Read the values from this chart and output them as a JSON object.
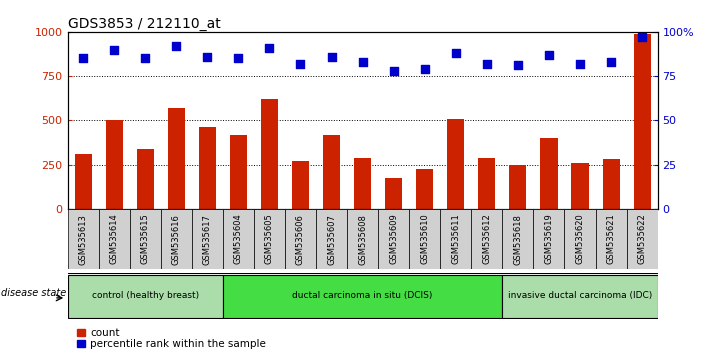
{
  "title": "GDS3853 / 212110_at",
  "samples": [
    "GSM535613",
    "GSM535614",
    "GSM535615",
    "GSM535616",
    "GSM535617",
    "GSM535604",
    "GSM535605",
    "GSM535606",
    "GSM535607",
    "GSM535608",
    "GSM535609",
    "GSM535610",
    "GSM535611",
    "GSM535612",
    "GSM535618",
    "GSM535619",
    "GSM535620",
    "GSM535621",
    "GSM535622"
  ],
  "counts": [
    310,
    500,
    340,
    570,
    460,
    420,
    620,
    270,
    420,
    290,
    175,
    225,
    510,
    285,
    245,
    400,
    260,
    280,
    990
  ],
  "percentiles": [
    85,
    90,
    85,
    92,
    86,
    85,
    91,
    82,
    86,
    83,
    78,
    79,
    88,
    82,
    81,
    87,
    82,
    83,
    97
  ],
  "bar_color": "#cc2200",
  "dot_color": "#0000cc",
  "ylim_left": [
    0,
    1000
  ],
  "ylim_right": [
    0,
    100
  ],
  "yticks_left": [
    0,
    250,
    500,
    750,
    1000
  ],
  "ytick_labels_right": [
    "0",
    "25",
    "50",
    "75",
    "100%"
  ],
  "grid_values": [
    250,
    500,
    750
  ],
  "groups": [
    {
      "label": "control (healthy breast)",
      "start": 0,
      "end": 5,
      "color": "#aaddaa"
    },
    {
      "label": "ductal carcinoma in situ (DCIS)",
      "start": 5,
      "end": 14,
      "color": "#44dd44"
    },
    {
      "label": "invasive ductal carcinoma (IDC)",
      "start": 14,
      "end": 19,
      "color": "#aaddaa"
    }
  ],
  "legend_items": [
    {
      "label": "count",
      "color": "#cc2200"
    },
    {
      "label": "percentile rank within the sample",
      "color": "#0000cc"
    }
  ],
  "disease_state_label": "disease state",
  "background_color": "#ffffff",
  "plot_bg_color": "#ffffff",
  "xtick_bg_color": "#d0d0d0",
  "title_fontsize": 10
}
